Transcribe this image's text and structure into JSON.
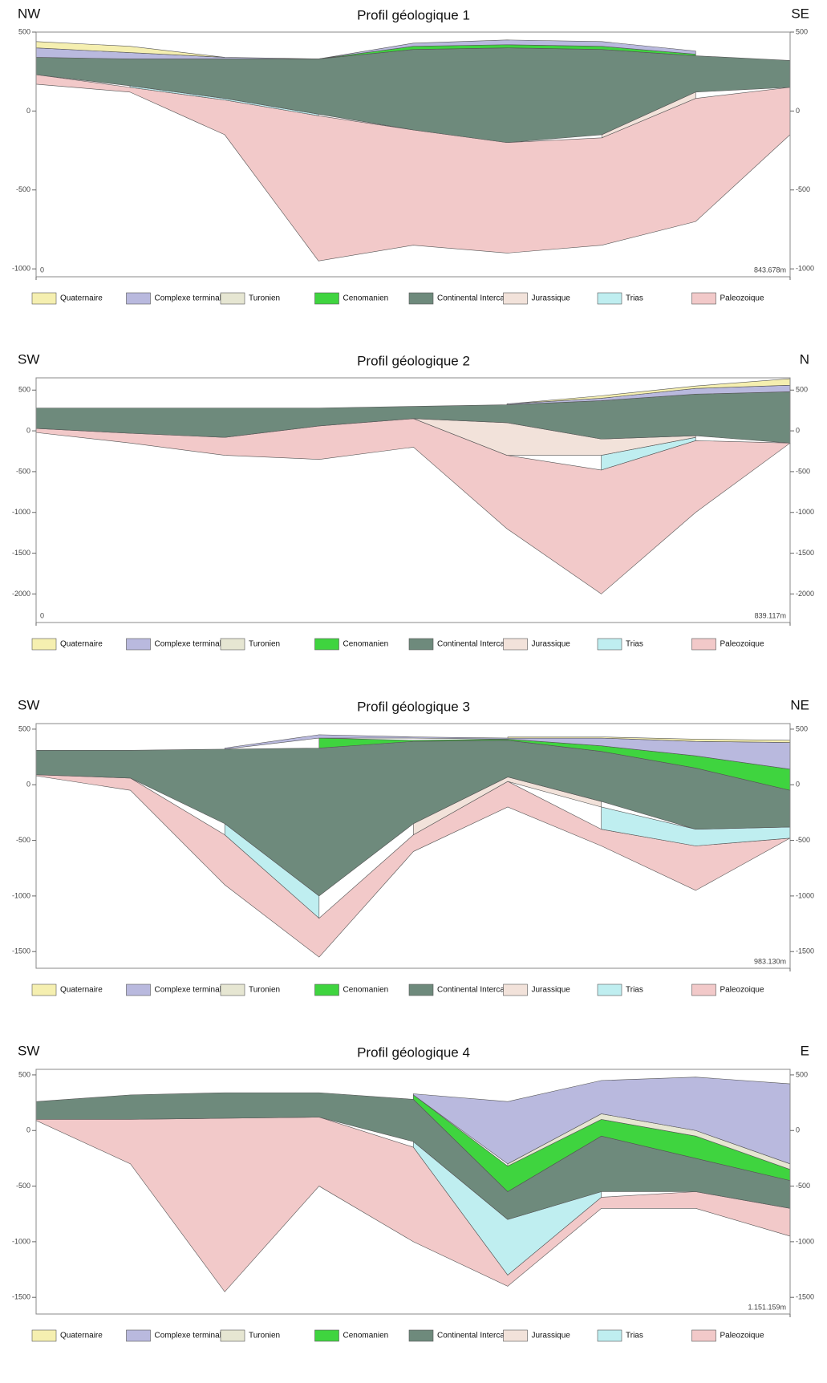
{
  "chart_data": [
    {
      "type": "geologic-section",
      "title": "Profil géologique 1",
      "left_label": "NW",
      "right_label": "SE",
      "x": [
        0,
        105,
        211,
        316,
        422,
        527,
        633,
        738,
        843.678
      ],
      "xlim": [
        0,
        843.678
      ],
      "xticks": [
        0,
        {
          "value": 843.678,
          "label": "843.678m"
        }
      ],
      "ylim": [
        -1050,
        500
      ],
      "yticks": [
        500,
        0,
        -500,
        -1000
      ],
      "series": [
        {
          "name": "Quaternaire",
          "color": "#f5efb0",
          "values": [
            440,
            410,
            340,
            null,
            null,
            null,
            null,
            null,
            null
          ],
          "base": [
            400,
            370,
            340,
            null,
            null,
            null,
            null,
            null,
            null
          ]
        },
        {
          "name": "Complexe terminal",
          "color": "#b9b9de",
          "values": [
            400,
            370,
            340,
            330,
            430,
            450,
            440,
            380,
            null
          ],
          "base": [
            340,
            330,
            330,
            330,
            410,
            420,
            410,
            360,
            null
          ]
        },
        {
          "name": "Turonien",
          "color": "#e6e6d2",
          "values": [
            null,
            null,
            null,
            null,
            null,
            null,
            null,
            null,
            null
          ],
          "base": [
            null,
            null,
            null,
            null,
            null,
            null,
            null,
            null,
            null
          ]
        },
        {
          "name": "Cenomanien",
          "color": "#3fd43f",
          "values": [
            null,
            null,
            null,
            330,
            410,
            420,
            410,
            360,
            null
          ],
          "base": [
            null,
            null,
            null,
            330,
            390,
            400,
            390,
            350,
            null
          ]
        },
        {
          "name": "Continental Intercalaire",
          "color": "#6e8a7c",
          "values": [
            340,
            330,
            330,
            330,
            390,
            400,
            390,
            350,
            320
          ],
          "base": [
            230,
            160,
            80,
            -20,
            -120,
            -200,
            -150,
            120,
            150
          ]
        },
        {
          "name": "Jurassique",
          "color": "#f2e2da",
          "values": [
            null,
            null,
            null,
            null,
            null,
            null,
            -150,
            120,
            null
          ],
          "base": [
            null,
            null,
            null,
            null,
            null,
            null,
            -170,
            80,
            null
          ]
        },
        {
          "name": "Trias",
          "color": "#bfeef0",
          "values": [
            null,
            160,
            80,
            -20,
            null,
            null,
            null,
            null,
            null
          ],
          "base": [
            null,
            150,
            70,
            -30,
            null,
            null,
            null,
            null,
            null
          ]
        },
        {
          "name": "Paleozoique",
          "color": "#f2c9c9",
          "values": [
            230,
            150,
            70,
            -30,
            -120,
            -200,
            -170,
            80,
            150
          ],
          "base": [
            170,
            120,
            -150,
            -950,
            -850,
            -900,
            -850,
            -700,
            -150
          ]
        }
      ]
    },
    {
      "type": "geologic-section",
      "title": "Profil géologique 2",
      "left_label": "SW",
      "right_label": "N",
      "x": [
        0,
        105,
        210,
        315,
        420,
        524,
        629,
        734,
        839.117
      ],
      "xlim": [
        0,
        839.117
      ],
      "xticks": [
        0,
        {
          "value": 839.117,
          "label": "839.117m"
        }
      ],
      "ylim": [
        -2350,
        650
      ],
      "yticks": [
        500,
        0,
        -500,
        -1000,
        -1500,
        -2000
      ],
      "series": [
        {
          "name": "Quaternaire",
          "color": "#f5efb0",
          "values": [
            null,
            null,
            null,
            null,
            null,
            330,
            430,
            550,
            640
          ],
          "base": [
            null,
            null,
            null,
            null,
            null,
            330,
            400,
            520,
            560
          ]
        },
        {
          "name": "Complexe terminal",
          "color": "#b9b9de",
          "values": [
            null,
            null,
            null,
            null,
            null,
            330,
            400,
            520,
            560
          ],
          "base": [
            null,
            null,
            null,
            null,
            null,
            320,
            370,
            450,
            480
          ]
        },
        {
          "name": "Turonien",
          "color": "#e6e6d2",
          "values": [
            null,
            null,
            null,
            null,
            null,
            null,
            null,
            null,
            null
          ],
          "base": [
            null,
            null,
            null,
            null,
            null,
            null,
            null,
            null,
            null
          ]
        },
        {
          "name": "Cenomanien",
          "color": "#3fd43f",
          "values": [
            null,
            null,
            null,
            null,
            null,
            null,
            null,
            null,
            null
          ],
          "base": [
            null,
            null,
            null,
            null,
            null,
            null,
            null,
            null,
            null
          ]
        },
        {
          "name": "Continental Intercalaire",
          "color": "#6e8a7c",
          "values": [
            280,
            280,
            280,
            280,
            300,
            320,
            370,
            450,
            480
          ],
          "base": [
            30,
            -30,
            -80,
            60,
            150,
            100,
            -100,
            -60,
            -150
          ]
        },
        {
          "name": "Jurassique",
          "color": "#f2e2da",
          "values": [
            null,
            null,
            null,
            null,
            150,
            100,
            -100,
            -60,
            null
          ],
          "base": [
            null,
            null,
            null,
            null,
            150,
            -300,
            -300,
            -80,
            null
          ]
        },
        {
          "name": "Trias",
          "color": "#bfeef0",
          "values": [
            null,
            null,
            null,
            null,
            null,
            null,
            -300,
            -80,
            null
          ],
          "base": [
            null,
            null,
            null,
            null,
            null,
            null,
            -480,
            -120,
            null
          ]
        },
        {
          "name": "Paleozoique",
          "color": "#f2c9c9",
          "values": [
            30,
            -30,
            -80,
            60,
            150,
            -300,
            -480,
            -120,
            -150
          ],
          "base": [
            -20,
            -150,
            -300,
            -350,
            -200,
            -1200,
            -2000,
            -1000,
            -150
          ]
        }
      ]
    },
    {
      "type": "geologic-section",
      "title": "Profil géologique 3",
      "left_label": "SW",
      "right_label": "NE",
      "x": [
        0,
        123,
        246,
        369,
        492,
        615,
        737,
        860,
        983.13
      ],
      "xlim": [
        0,
        983.13
      ],
      "xticks": [
        {
          "value": 983.13,
          "label": "983.130m"
        }
      ],
      "ylim": [
        -1650,
        550
      ],
      "yticks": [
        500,
        0,
        -500,
        -1000,
        -1500
      ],
      "series": [
        {
          "name": "Quaternaire",
          "color": "#f5efb0",
          "values": [
            null,
            null,
            null,
            null,
            null,
            430,
            430,
            410,
            400
          ],
          "base": [
            null,
            null,
            null,
            null,
            null,
            420,
            420,
            390,
            380
          ]
        },
        {
          "name": "Complexe terminal",
          "color": "#b9b9de",
          "values": [
            null,
            null,
            330,
            450,
            430,
            420,
            420,
            390,
            380
          ],
          "base": [
            null,
            null,
            320,
            420,
            420,
            410,
            350,
            260,
            140
          ]
        },
        {
          "name": "Turonien",
          "color": "#e6e6d2",
          "values": [
            null,
            null,
            null,
            null,
            null,
            null,
            null,
            null,
            null
          ],
          "base": [
            null,
            null,
            null,
            null,
            null,
            null,
            null,
            null,
            null
          ]
        },
        {
          "name": "Cenomanien",
          "color": "#3fd43f",
          "values": [
            null,
            null,
            null,
            420,
            400,
            410,
            350,
            260,
            140
          ],
          "base": [
            null,
            null,
            null,
            330,
            390,
            400,
            300,
            150,
            -50
          ]
        },
        {
          "name": "Continental Intercalaire",
          "color": "#6e8a7c",
          "values": [
            310,
            310,
            320,
            330,
            390,
            400,
            300,
            150,
            -50
          ],
          "base": [
            90,
            60,
            -350,
            -1000,
            -350,
            70,
            -150,
            -400,
            -380
          ]
        },
        {
          "name": "Jurassique",
          "color": "#f2e2da",
          "values": [
            null,
            null,
            null,
            null,
            -350,
            70,
            -150,
            null,
            null
          ],
          "base": [
            null,
            null,
            null,
            null,
            -450,
            30,
            -200,
            null,
            null
          ]
        },
        {
          "name": "Trias",
          "color": "#bfeef0",
          "values": [
            null,
            null,
            -350,
            -1000,
            null,
            null,
            -200,
            -400,
            -380
          ],
          "base": [
            null,
            null,
            -450,
            -1200,
            null,
            null,
            -400,
            -550,
            -480
          ]
        },
        {
          "name": "Paleozoique",
          "color": "#f2c9c9",
          "values": [
            90,
            60,
            -450,
            -1200,
            -450,
            30,
            -400,
            -550,
            -480
          ],
          "base": [
            80,
            -50,
            -900,
            -1550,
            -600,
            -200,
            -550,
            -950,
            -480
          ]
        }
      ]
    },
    {
      "type": "geologic-section",
      "title": "Profil géologique 4",
      "left_label": "SW",
      "right_label": "E",
      "x": [
        0,
        144,
        288,
        432,
        576,
        720,
        863,
        1007,
        1151.159
      ],
      "xlim": [
        0,
        1151.159
      ],
      "xticks": [
        {
          "value": 1151.159,
          "label": "1.151.159m"
        }
      ],
      "ylim": [
        -1650,
        550
      ],
      "yticks": [
        500,
        0,
        -500,
        -1000,
        -1500
      ],
      "series": [
        {
          "name": "Quaternaire",
          "color": "#f5efb0",
          "values": [
            null,
            null,
            null,
            null,
            null,
            null,
            null,
            null,
            null
          ],
          "base": [
            null,
            null,
            null,
            null,
            null,
            null,
            null,
            null,
            null
          ]
        },
        {
          "name": "Complexe terminal",
          "color": "#b9b9de",
          "values": [
            null,
            null,
            null,
            null,
            330,
            260,
            450,
            480,
            420
          ],
          "base": [
            null,
            null,
            null,
            null,
            320,
            -300,
            150,
            0,
            -300
          ]
        },
        {
          "name": "Turonien",
          "color": "#e6e6d2",
          "values": [
            null,
            null,
            null,
            null,
            null,
            -300,
            150,
            0,
            -300
          ],
          "base": [
            null,
            null,
            null,
            null,
            null,
            -320,
            100,
            -50,
            -350
          ]
        },
        {
          "name": "Cenomanien",
          "color": "#3fd43f",
          "values": [
            null,
            null,
            null,
            null,
            320,
            -320,
            100,
            -50,
            -350
          ],
          "base": [
            null,
            null,
            null,
            null,
            280,
            -550,
            -50,
            -250,
            -450
          ]
        },
        {
          "name": "Continental Intercalaire",
          "color": "#6e8a7c",
          "values": [
            260,
            320,
            340,
            340,
            280,
            -550,
            -50,
            -250,
            -450
          ],
          "base": [
            100,
            100,
            110,
            120,
            -100,
            -800,
            -550,
            -550,
            -700
          ]
        },
        {
          "name": "Jurassique",
          "color": "#f2e2da",
          "values": [
            null,
            null,
            null,
            null,
            null,
            null,
            null,
            null,
            null
          ],
          "base": [
            null,
            null,
            null,
            null,
            null,
            null,
            null,
            null,
            null
          ]
        },
        {
          "name": "Trias",
          "color": "#bfeef0",
          "values": [
            null,
            null,
            null,
            null,
            -100,
            -800,
            -550,
            null,
            null
          ],
          "base": [
            null,
            null,
            null,
            null,
            -150,
            -1300,
            -600,
            null,
            null
          ]
        },
        {
          "name": "Paleozoique",
          "color": "#f2c9c9",
          "values": [
            100,
            100,
            110,
            120,
            -150,
            -1300,
            -600,
            -550,
            -700
          ],
          "base": [
            90,
            -300,
            -1450,
            -500,
            -1000,
            -1400,
            -700,
            -700,
            -950
          ]
        }
      ]
    }
  ]
}
